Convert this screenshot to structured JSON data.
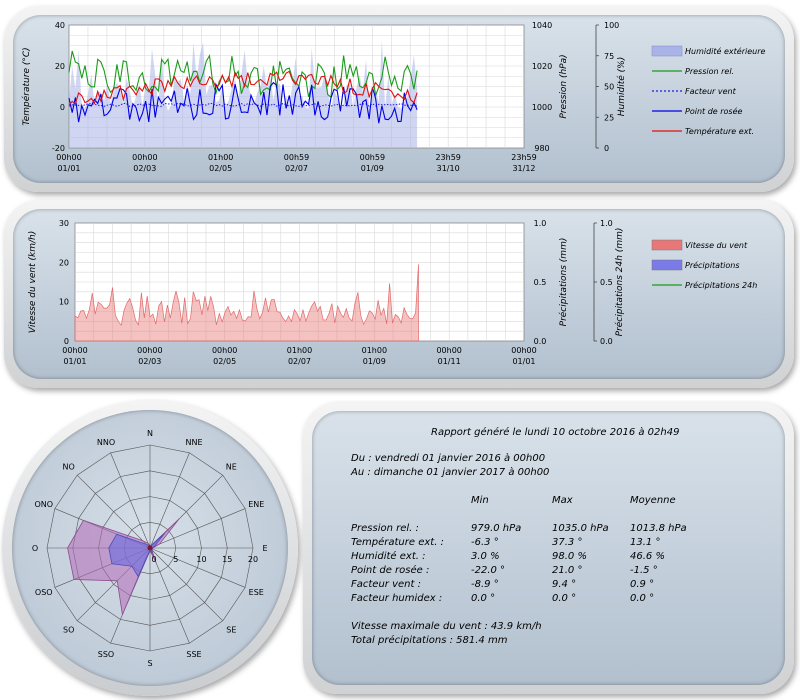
{
  "chart_data": [
    {
      "type": "line",
      "x_tick_labels": [
        [
          "00h00",
          "01/01"
        ],
        [
          "00h00",
          "02/03"
        ],
        [
          "01h00",
          "02/05"
        ],
        [
          "00h59",
          "02/07"
        ],
        [
          "00h59",
          "01/09"
        ],
        [
          "23h59",
          "31/10"
        ],
        [
          "23h59",
          "31/12"
        ]
      ],
      "y_left": {
        "label": "Température (°C)",
        "ticks": [
          "40",
          "20",
          "0",
          "-20"
        ],
        "ylim": [
          -20,
          40
        ]
      },
      "y_right1": {
        "label": "Pression (hPa)",
        "ticks": [
          "1040",
          "1020",
          "1000",
          "980"
        ],
        "ylim": [
          980,
          1040
        ]
      },
      "y_right2": {
        "label": "Humidité (%)",
        "ticks": [
          "100",
          "75",
          "50",
          "25",
          "0"
        ],
        "ylim": [
          0,
          100
        ]
      },
      "grid": true,
      "legend_position": "right",
      "series": [
        {
          "name": "Humidité extérieure",
          "color": "#a9b3e8",
          "style": "area",
          "axis": "humidity"
        },
        {
          "name": "Pression rel.",
          "color": "#1a9c1a",
          "style": "line",
          "axis": "pressure"
        },
        {
          "name": "Facteur vent",
          "color": "#1d1de0",
          "style": "dotted",
          "axis": "temperature"
        },
        {
          "name": "Point de rosée",
          "color": "#0000e6",
          "style": "line",
          "axis": "temperature"
        },
        {
          "name": "Température ext.",
          "color": "#e01010",
          "style": "line",
          "axis": "temperature"
        }
      ],
      "note": "Data series cover 01/01 to about 07/10; values shown range roughly: temperature -6 to 37 °C, dew point -22 to 21 °C, pressure 979 to 1035 hPa, humidity 3 to 98 %"
    },
    {
      "type": "area",
      "x_tick_labels": [
        [
          "00h00",
          "01/01"
        ],
        [
          "00h00",
          "02/03"
        ],
        [
          "00h00",
          "02/05"
        ],
        [
          "01h00",
          "02/07"
        ],
        [
          "01h00",
          "01/09"
        ],
        [
          "00h00",
          "01/11"
        ],
        [
          "00h00",
          "01/01"
        ]
      ],
      "y_left": {
        "label": "Vitesse du vent (km/h)",
        "ticks": [
          "30",
          "20",
          "10",
          "0"
        ],
        "ylim": [
          0,
          30
        ]
      },
      "y_right1": {
        "label": "Précipitations (mm)",
        "ticks": [
          "1.0",
          "0.5",
          "0.0"
        ],
        "ylim": [
          0,
          1
        ]
      },
      "y_right2": {
        "label": "Précipitations 24h (mm)",
        "ticks": [
          "1.0",
          "0.5",
          "0.0"
        ],
        "ylim": [
          0,
          1
        ]
      },
      "grid": true,
      "legend_position": "right",
      "series": [
        {
          "name": "Vitesse du vent",
          "color": "#e87878",
          "style": "area"
        },
        {
          "name": "Précipitations",
          "color": "#7a7ae8",
          "style": "area"
        },
        {
          "name": "Précipitations 24h",
          "color": "#1a9c1a",
          "style": "line"
        }
      ]
    },
    {
      "type": "radar",
      "directions": [
        "N",
        "NNE",
        "NE",
        "ENE",
        "E",
        "ESE",
        "SE",
        "SSE",
        "S",
        "SSO",
        "SO",
        "OSO",
        "O",
        "ONO",
        "NO",
        "NNO"
      ],
      "radial_ticks": [
        "0",
        "5",
        "10",
        "15",
        "20"
      ],
      "rmax": 20,
      "values_outer": [
        0.5,
        0.5,
        8,
        2,
        0.5,
        0.5,
        0.5,
        3,
        0.5,
        14,
        9,
        16,
        16,
        14,
        2,
        1
      ],
      "values_inner": [
        0.5,
        0.5,
        4,
        1,
        0.5,
        0.5,
        0.5,
        1,
        0.5,
        6,
        5,
        8,
        8,
        7,
        1,
        0.5
      ],
      "outer_color": "#b26ab8",
      "inner_color": "#6a6ae0"
    }
  ],
  "report": {
    "title": "Rapport généré le lundi 10 octobre 2016 à 02h49",
    "from": "Du : vendredi 01 janvier 2016 à 00h00",
    "to": "Au : dimanche 01 janvier 2017 à 00h00",
    "col_min": "Min",
    "col_max": "Max",
    "col_avg": "Moyenne",
    "rows": [
      {
        "label": "Pression rel. :",
        "min": "979.0 hPa",
        "max": "1035.0 hPa",
        "avg": "1013.8 hPa"
      },
      {
        "label": "Température ext. :",
        "min": "-6.3 °",
        "max": "37.3 °",
        "avg": "13.1 °"
      },
      {
        "label": "Humidité ext. :",
        "min": "3.0 %",
        "max": "98.0 %",
        "avg": "46.6 %"
      },
      {
        "label": "Point de rosée :",
        "min": "-22.0 °",
        "max": "21.0 °",
        "avg": "-1.5 °"
      },
      {
        "label": "Facteur vent :",
        "min": "-8.9 °",
        "max": "9.4 °",
        "avg": "0.9 °"
      },
      {
        "label": "Facteur humidex :",
        "min": "0.0 °",
        "max": "0.0 °",
        "avg": "0.0 °"
      }
    ],
    "max_wind": "Vitesse maximale du vent : 43.9 km/h",
    "total_rain": "Total précipitations : 581.4 mm"
  }
}
